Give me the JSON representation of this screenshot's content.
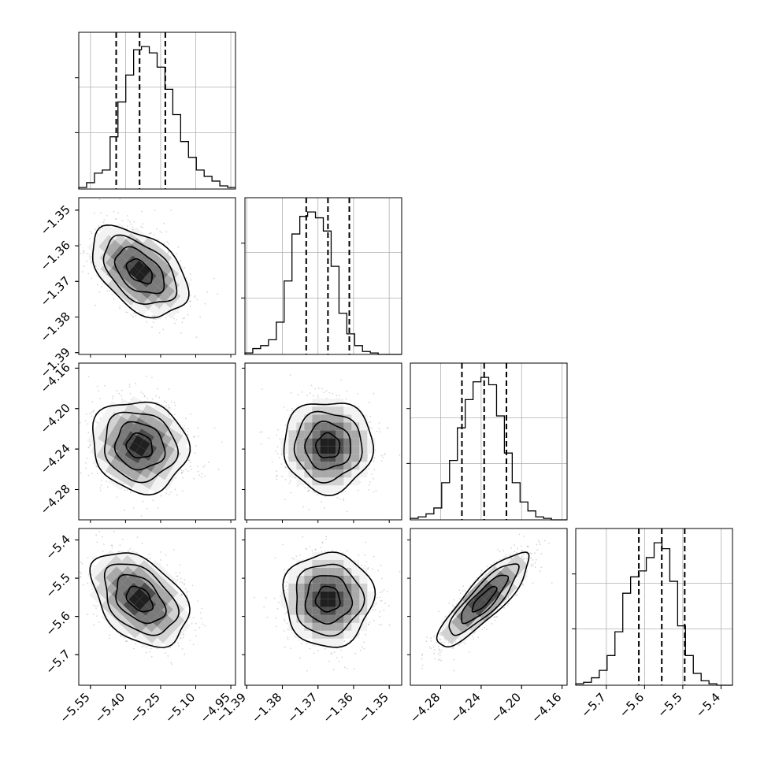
{
  "chart_data": {
    "type": "corner",
    "colors": {
      "ink": "#000000",
      "grid": "#b0b0b0",
      "samples": "#8a8a8a",
      "density_low": "#f4f4f4",
      "density_high": "#000000"
    },
    "grid": true,
    "parameters": [
      {
        "index": 0,
        "range": [
          -5.6,
          -4.93
        ],
        "ticks": [
          "-5.55",
          "-5.40",
          "-5.25",
          "-5.10",
          "-4.95"
        ],
        "median": -5.34,
        "q16": -5.44,
        "q84": -5.23
      },
      {
        "index": 1,
        "range": [
          -1.3905,
          -1.3465
        ],
        "ticks": [
          "-1.39",
          "-1.38",
          "-1.37",
          "-1.36",
          "-1.35"
        ],
        "median": -1.3672,
        "q16": -1.3733,
        "q84": -1.3612
      },
      {
        "index": 2,
        "range": [
          -4.31,
          -4.155
        ],
        "ticks": [
          "-4.16",
          "-4.20",
          "-4.24",
          "-4.28"
        ],
        "median": -4.237,
        "q16": -4.259,
        "q84": -4.215
      },
      {
        "index": 3,
        "range": [
          -5.78,
          -5.37
        ],
        "ticks": [
          "-5.4",
          "-5.5",
          "-5.6",
          "-5.7"
        ],
        "median": -5.555,
        "q16": -5.615,
        "q84": -5.495
      }
    ],
    "marginals": [
      {
        "param": 0,
        "counts": [
          1,
          4,
          10,
          12,
          33,
          55,
          72,
          88,
          90,
          86,
          77,
          63,
          47,
          30,
          20,
          12,
          8,
          5,
          2,
          1
        ]
      },
      {
        "param": 1,
        "counts": [
          1,
          4,
          6,
          10,
          22,
          50,
          82,
          94,
          97,
          93,
          84,
          60,
          28,
          14,
          6,
          2,
          1,
          0,
          0,
          0
        ]
      },
      {
        "param": 2,
        "counts": [
          1,
          2,
          4,
          8,
          25,
          40,
          62,
          81,
          93,
          96,
          91,
          70,
          45,
          25,
          12,
          6,
          2,
          1,
          0,
          0
        ]
      },
      {
        "param": 3,
        "counts": [
          1,
          2,
          5,
          10,
          20,
          36,
          62,
          73,
          77,
          86,
          96,
          92,
          70,
          40,
          20,
          8,
          3,
          1,
          0,
          0
        ]
      }
    ],
    "joints": [
      {
        "x": 0,
        "y": 1,
        "center": [
          -5.34,
          -1.3672
        ],
        "sigma": [
          0.1,
          0.0061
        ],
        "rho": -0.45
      },
      {
        "x": 0,
        "y": 2,
        "center": [
          -5.34,
          -4.237
        ],
        "sigma": [
          0.1,
          0.022
        ],
        "rho": -0.1
      },
      {
        "x": 1,
        "y": 2,
        "center": [
          -1.3672,
          -4.237
        ],
        "sigma": [
          0.0061,
          0.022
        ],
        "rho": 0.0
      },
      {
        "x": 0,
        "y": 3,
        "center": [
          -5.34,
          -5.555
        ],
        "sigma": [
          0.1,
          0.06
        ],
        "rho": -0.4
      },
      {
        "x": 1,
        "y": 3,
        "center": [
          -1.3672,
          -5.555
        ],
        "sigma": [
          0.0061,
          0.06
        ],
        "rho": 0.0
      },
      {
        "x": 2,
        "y": 3,
        "center": [
          -4.237,
          -5.555
        ],
        "sigma": [
          0.022,
          0.06
        ],
        "rho": 0.85
      }
    ]
  }
}
